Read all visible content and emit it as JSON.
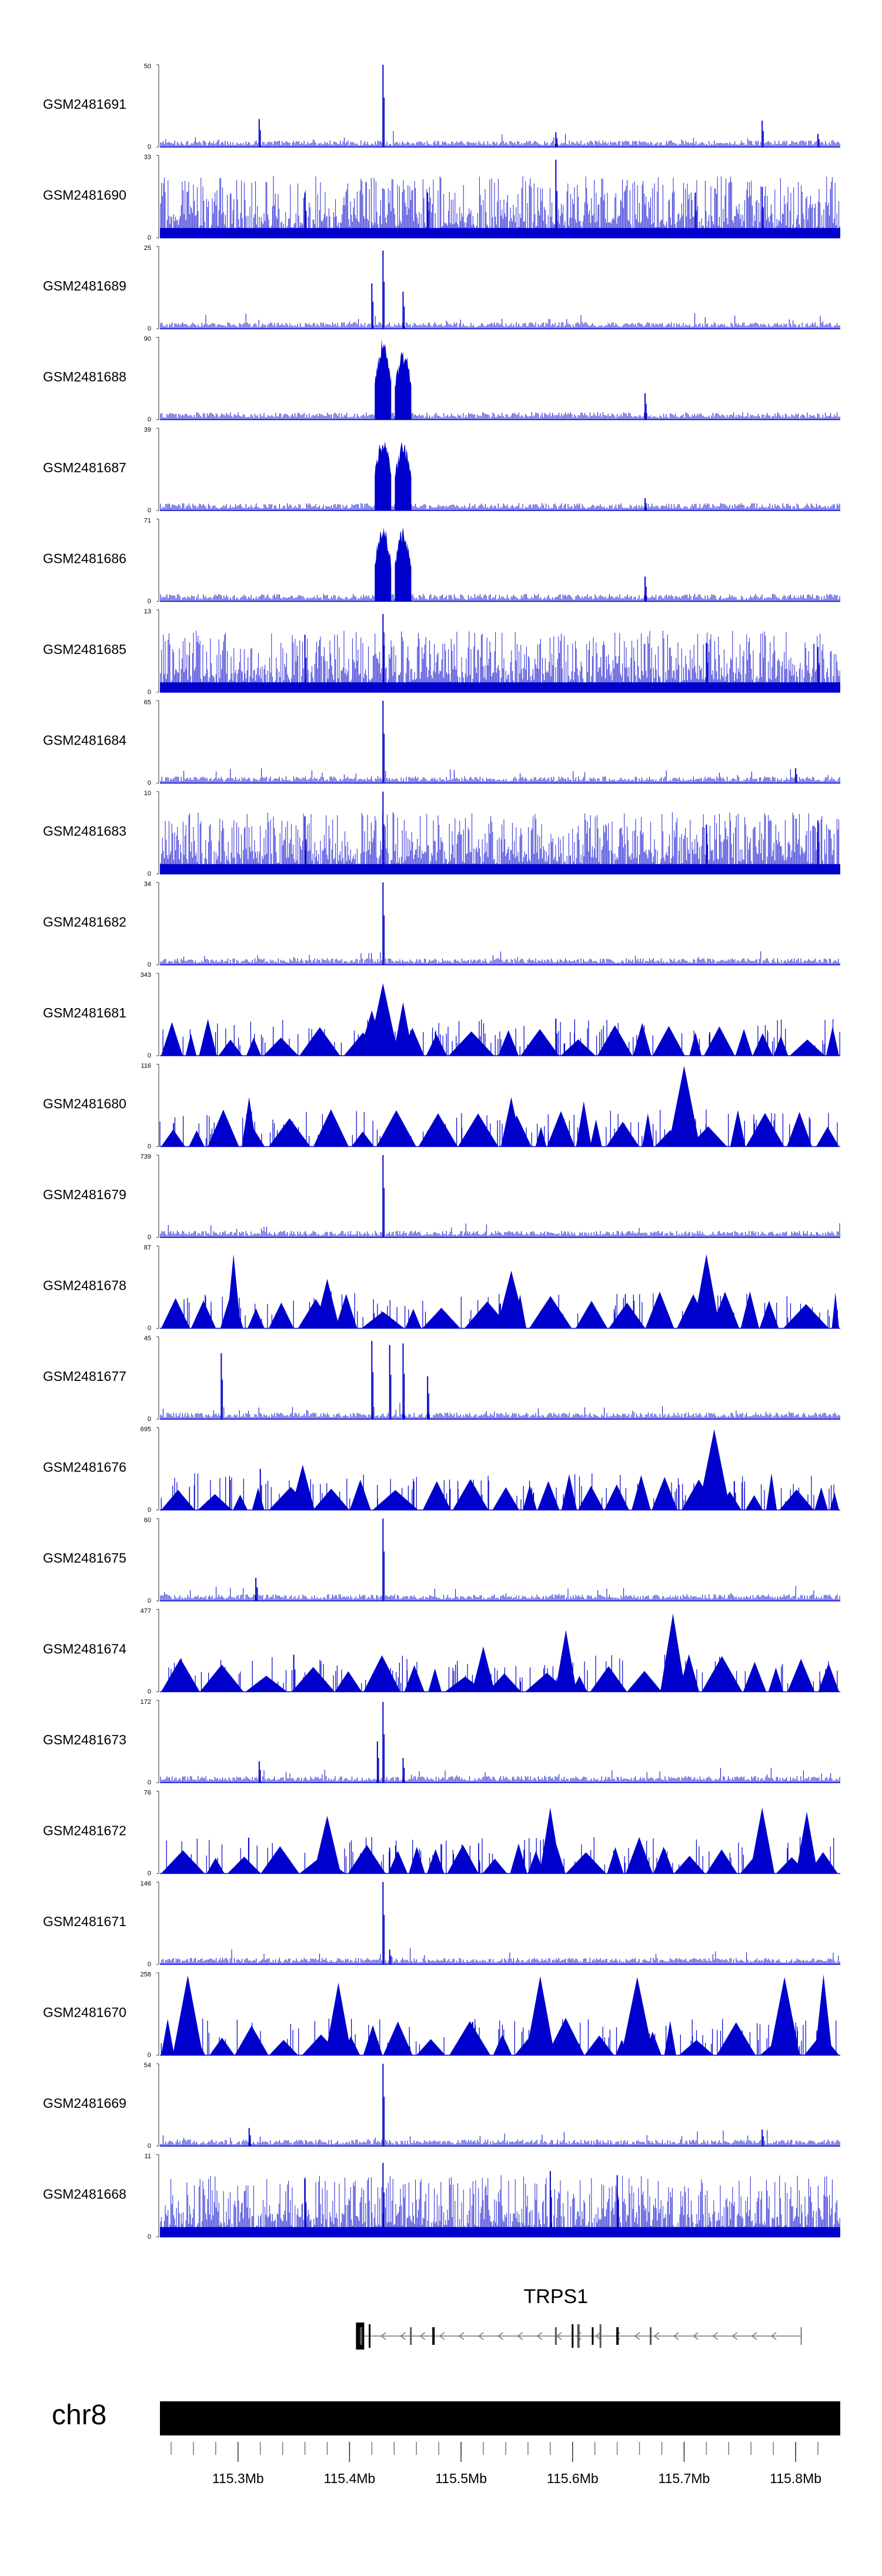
{
  "chart_data": {
    "type": "genome-tracks",
    "chromosome": "chr8",
    "x_range_mb": [
      115.23,
      115.84
    ],
    "x_axis_ticks": [
      "115.3Mb",
      "115.4Mb",
      "115.5Mb",
      "115.6Mb",
      "115.7Mb",
      "115.8Mb"
    ],
    "x_axis_tick_values_mb": [
      115.3,
      115.4,
      115.5,
      115.6,
      115.7,
      115.8
    ],
    "series_color": "#0000cc",
    "tracks": [
      {
        "name": "GSM2481691",
        "max": "50",
        "min": "0",
        "style": "sparse",
        "peaks": [
          [
            115.43,
            1.0
          ],
          [
            115.319,
            0.34
          ],
          [
            115.77,
            0.32
          ],
          [
            115.585,
            0.18
          ],
          [
            115.82,
            0.16
          ]
        ]
      },
      {
        "name": "GSM2481690",
        "max": "33",
        "min": "0",
        "style": "dense",
        "peaks": [
          [
            115.585,
            0.95
          ],
          [
            115.77,
            0.62
          ],
          [
            115.36,
            0.55
          ],
          [
            115.47,
            0.55
          ],
          [
            115.71,
            0.55
          ]
        ]
      },
      {
        "name": "GSM2481689",
        "max": "25",
        "min": "0",
        "style": "sparse",
        "peaks": [
          [
            115.43,
            0.95
          ],
          [
            115.448,
            0.45
          ],
          [
            115.42,
            0.55
          ]
        ]
      },
      {
        "name": "GSM2481688",
        "max": "90",
        "min": "0",
        "style": "blocks",
        "peaks": [
          [
            115.43,
            1.0
          ],
          [
            115.448,
            0.88
          ],
          [
            115.665,
            0.32
          ]
        ]
      },
      {
        "name": "GSM2481687",
        "max": "39",
        "min": "0",
        "style": "blocks",
        "peaks": [
          [
            115.43,
            0.92
          ],
          [
            115.448,
            0.85
          ],
          [
            115.665,
            0.15
          ]
        ]
      },
      {
        "name": "GSM2481686",
        "max": "71",
        "min": "0",
        "style": "blocks",
        "peaks": [
          [
            115.43,
            0.95
          ],
          [
            115.448,
            0.9
          ],
          [
            115.665,
            0.3
          ]
        ]
      },
      {
        "name": "GSM2481685",
        "max": "13",
        "min": "0",
        "style": "dense",
        "peaks": [
          [
            115.43,
            0.95
          ],
          [
            115.36,
            0.7
          ],
          [
            115.72,
            0.6
          ],
          [
            115.82,
            0.55
          ]
        ]
      },
      {
        "name": "GSM2481684",
        "max": "65",
        "min": "0",
        "style": "sparse",
        "peaks": [
          [
            115.43,
            1.0
          ],
          [
            115.8,
            0.18
          ]
        ]
      },
      {
        "name": "GSM2481683",
        "max": "10",
        "min": "0",
        "style": "dense",
        "peaks": [
          [
            115.43,
            1.0
          ],
          [
            115.36,
            0.7
          ],
          [
            115.72,
            0.6
          ],
          [
            115.82,
            0.65
          ]
        ]
      },
      {
        "name": "GSM2481682",
        "max": "34",
        "min": "0",
        "style": "sparse",
        "peaks": [
          [
            115.43,
            1.0
          ]
        ]
      },
      {
        "name": "GSM2481681",
        "max": "343",
        "min": "0",
        "style": "triangles",
        "peaks": [
          [
            115.43,
            0.88
          ],
          [
            115.42,
            0.55
          ],
          [
            115.448,
            0.65
          ],
          [
            115.585,
            0.45
          ]
        ]
      },
      {
        "name": "GSM2481680",
        "max": "116",
        "min": "0",
        "style": "triangles",
        "peaks": [
          [
            115.7,
            0.98
          ],
          [
            115.31,
            0.6
          ],
          [
            115.545,
            0.6
          ],
          [
            115.61,
            0.55
          ]
        ]
      },
      {
        "name": "GSM2481679",
        "max": "739",
        "min": "0",
        "style": "sparse",
        "peaks": [
          [
            115.43,
            1.0
          ]
        ]
      },
      {
        "name": "GSM2481678",
        "max": "87",
        "min": "0",
        "style": "triangles",
        "peaks": [
          [
            115.296,
            0.9
          ],
          [
            115.72,
            0.9
          ],
          [
            115.545,
            0.7
          ],
          [
            115.38,
            0.6
          ]
        ]
      },
      {
        "name": "GSM2481677",
        "max": "45",
        "min": "0",
        "style": "sparse",
        "peaks": [
          [
            115.42,
            0.95
          ],
          [
            115.448,
            0.92
          ],
          [
            115.436,
            0.9
          ],
          [
            115.285,
            0.8
          ],
          [
            115.47,
            0.52
          ]
        ]
      },
      {
        "name": "GSM2481676",
        "max": "695",
        "min": "0",
        "style": "triangles",
        "peaks": [
          [
            115.727,
            0.98
          ],
          [
            115.358,
            0.55
          ],
          [
            115.32,
            0.5
          ],
          [
            115.745,
            0.35
          ]
        ]
      },
      {
        "name": "GSM2481675",
        "max": "60",
        "min": "0",
        "style": "sparse",
        "peaks": [
          [
            115.43,
            1.0
          ],
          [
            115.316,
            0.28
          ]
        ]
      },
      {
        "name": "GSM2481674",
        "max": "477",
        "min": "0",
        "style": "triangles",
        "peaks": [
          [
            115.69,
            0.95
          ],
          [
            115.594,
            0.75
          ],
          [
            115.52,
            0.55
          ],
          [
            115.35,
            0.45
          ]
        ]
      },
      {
        "name": "GSM2481673",
        "max": "172",
        "min": "0",
        "style": "sparse",
        "peaks": [
          [
            115.43,
            0.98
          ],
          [
            115.425,
            0.5
          ],
          [
            115.448,
            0.3
          ],
          [
            115.319,
            0.26
          ]
        ]
      },
      {
        "name": "GSM2481672",
        "max": "76",
        "min": "0",
        "style": "triangles",
        "peaks": [
          [
            115.77,
            0.8
          ],
          [
            115.81,
            0.75
          ],
          [
            115.58,
            0.8
          ],
          [
            115.38,
            0.7
          ]
        ]
      },
      {
        "name": "GSM2481671",
        "max": "146",
        "min": "0",
        "style": "sparse",
        "peaks": [
          [
            115.43,
            1.0
          ],
          [
            115.436,
            0.18
          ]
        ]
      },
      {
        "name": "GSM2481670",
        "max": "258",
        "min": "0",
        "style": "triangles",
        "peaks": [
          [
            115.825,
            0.98
          ],
          [
            115.571,
            0.96
          ],
          [
            115.658,
            0.95
          ],
          [
            115.255,
            0.97
          ],
          [
            115.79,
            0.95
          ],
          [
            115.39,
            0.88
          ]
        ]
      },
      {
        "name": "GSM2481669",
        "max": "54",
        "min": "0",
        "style": "sparse",
        "peaks": [
          [
            115.43,
            1.0
          ],
          [
            115.31,
            0.22
          ],
          [
            115.77,
            0.2
          ]
        ]
      },
      {
        "name": "GSM2481668",
        "max": "11",
        "min": "0",
        "style": "dense",
        "peaks": [
          [
            115.43,
            0.9
          ],
          [
            115.58,
            0.8
          ],
          [
            115.64,
            0.75
          ],
          [
            115.36,
            0.7
          ]
        ]
      }
    ],
    "gene": {
      "name": "TRPS1",
      "strand": "-",
      "start_mb": 115.41,
      "end_mb": 115.805,
      "exons_mb": [
        115.41,
        115.418,
        115.455,
        115.475,
        115.585,
        115.6,
        115.605,
        115.618,
        115.625,
        115.64,
        115.67
      ]
    }
  }
}
